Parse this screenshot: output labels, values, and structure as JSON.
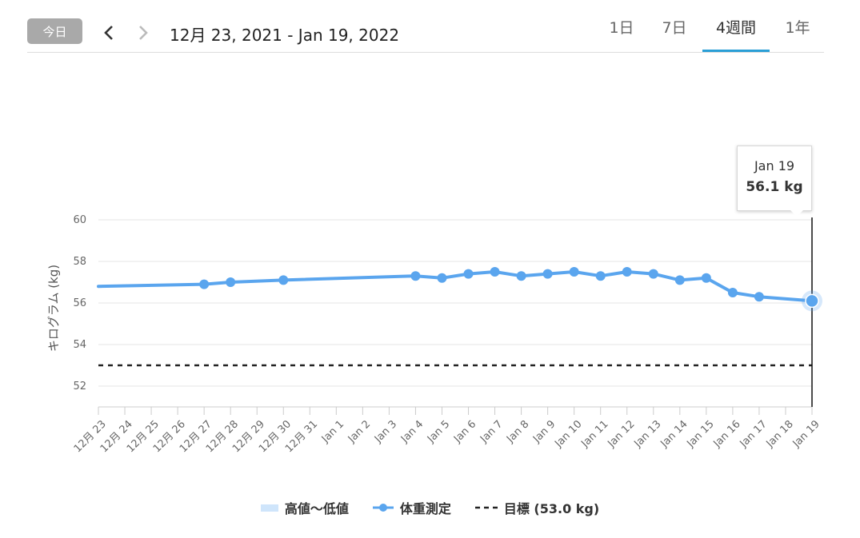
{
  "toolbar": {
    "today_label": "今日",
    "prev_icon": "chevron-left-icon",
    "next_icon": "chevron-right-icon",
    "date_range": "12月 23, 2021 - Jan 19, 2022",
    "tabs": [
      {
        "label": "1日",
        "active": false
      },
      {
        "label": "7日",
        "active": false
      },
      {
        "label": "4週間",
        "active": true
      },
      {
        "label": "1年",
        "active": false
      }
    ],
    "accent_color": "#2a9fd6"
  },
  "tooltip": {
    "date": "Jan 19",
    "value": "56.1 kg"
  },
  "legend": [
    {
      "label": "高値〜低値",
      "swatch": "area",
      "color": "#cfe5fb"
    },
    {
      "label": "体重測定",
      "swatch": "line-marker",
      "color": "#5aa5ee"
    },
    {
      "label": "目標 (53.0 kg)",
      "swatch": "dashed-line",
      "color": "#222222"
    }
  ],
  "chart_data": {
    "type": "line",
    "title": "",
    "xlabel": "",
    "ylabel": "キログラム (kg)",
    "ylim": [
      51,
      60.5
    ],
    "yticks": [
      52,
      54,
      56,
      58,
      60
    ],
    "grid": true,
    "categories": [
      "12月 23",
      "12月 24",
      "12月 25",
      "12月 26",
      "12月 27",
      "12月 28",
      "12月 29",
      "12月 30",
      "12月 31",
      "Jan 1",
      "Jan 2",
      "Jan 3",
      "Jan 4",
      "Jan 5",
      "Jan 6",
      "Jan 7",
      "Jan 8",
      "Jan 9",
      "Jan 10",
      "Jan 11",
      "Jan 12",
      "Jan 13",
      "Jan 14",
      "Jan 15",
      "Jan 16",
      "Jan 17",
      "Jan 18",
      "Jan 19"
    ],
    "series": [
      {
        "name": "体重測定",
        "color": "#5aa5ee",
        "start_value": 56.8,
        "points": [
          {
            "x": "12月 27",
            "y": 56.9
          },
          {
            "x": "12月 28",
            "y": 57.0
          },
          {
            "x": "12月 30",
            "y": 57.1
          },
          {
            "x": "Jan 4",
            "y": 57.3
          },
          {
            "x": "Jan 5",
            "y": 57.2
          },
          {
            "x": "Jan 6",
            "y": 57.4
          },
          {
            "x": "Jan 7",
            "y": 57.5
          },
          {
            "x": "Jan 8",
            "y": 57.3
          },
          {
            "x": "Jan 9",
            "y": 57.4
          },
          {
            "x": "Jan 10",
            "y": 57.5
          },
          {
            "x": "Jan 11",
            "y": 57.3
          },
          {
            "x": "Jan 12",
            "y": 57.5
          },
          {
            "x": "Jan 13",
            "y": 57.4
          },
          {
            "x": "Jan 14",
            "y": 57.1
          },
          {
            "x": "Jan 15",
            "y": 57.2
          },
          {
            "x": "Jan 16",
            "y": 56.5
          },
          {
            "x": "Jan 17",
            "y": 56.3
          },
          {
            "x": "Jan 19",
            "y": 56.1
          }
        ]
      }
    ],
    "goal": {
      "value": 53.0,
      "color": "#222222"
    },
    "highlight_x": "Jan 19",
    "legend_position": "bottom"
  }
}
